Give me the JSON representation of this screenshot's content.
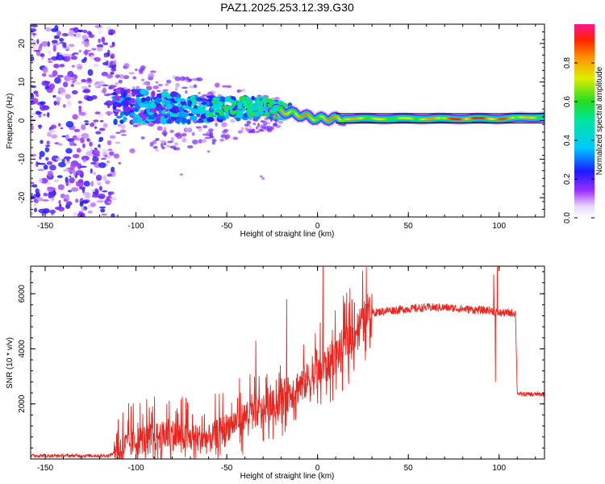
{
  "title": "PAZ1.2025.253.12.39.G30",
  "colors": {
    "snr_line": "#e8261f",
    "spectral_ridge": "#d81b60",
    "spectral_low": "#9b30ff",
    "axis": "#000000"
  },
  "chart_data": [
    {
      "type": "heatmap",
      "title": "PAZ1.2025.253.12.39.G30",
      "xlabel": "Height of straight line (km)",
      "ylabel": "Frequency (Hz)",
      "xlim": [
        -158,
        125
      ],
      "ylim": [
        -25,
        25
      ],
      "x_ticks": [
        -150,
        -100,
        -50,
        0,
        50,
        100
      ],
      "x_tick_labels": [
        "-150",
        "-100",
        "-50",
        "0",
        "50",
        "100"
      ],
      "y_ticks": [
        -20,
        -10,
        0,
        10,
        20
      ],
      "y_tick_labels": [
        "-20",
        "-10",
        "0",
        "10",
        "20"
      ],
      "colorbar": {
        "label": "Normalized spectral amplitude",
        "range": [
          0,
          1
        ],
        "ticks": [
          0.0,
          0.2,
          0.4,
          0.6,
          0.8
        ],
        "tick_labels": [
          "0.0",
          "0.2",
          "0.4",
          "0.6",
          "0.8"
        ],
        "colormap": "rainbow"
      },
      "ridge": {
        "description": "dominant frequency vs height",
        "x": [
          -110,
          -90,
          -70,
          -50,
          -30,
          -20,
          -10,
          0,
          10,
          20,
          40,
          60,
          80,
          100,
          125
        ],
        "y": [
          4,
          3.5,
          3,
          3,
          3.5,
          2.5,
          1.5,
          0.5,
          0.5,
          0.5,
          0.5,
          0.5,
          0.5,
          0.5,
          1
        ],
        "amplitude": [
          0.35,
          0.4,
          0.45,
          0.5,
          0.6,
          0.7,
          0.75,
          0.7,
          0.75,
          0.7,
          0.6,
          0.7,
          0.85,
          0.8,
          0.6
        ]
      },
      "noise_region": {
        "x_range": [
          -158,
          -112
        ],
        "y_range": [
          -25,
          25
        ],
        "amplitude": [
          0.05,
          0.25
        ]
      }
    },
    {
      "type": "line",
      "xlabel": "Height of straight line (km)",
      "ylabel": "SNR (10 * v/v)",
      "xlim": [
        -158,
        125
      ],
      "ylim": [
        0,
        7000
      ],
      "x_ticks": [
        -150,
        -100,
        -50,
        0,
        50,
        100
      ],
      "x_tick_labels": [
        "-150",
        "-100",
        "-50",
        "0",
        "50",
        "100"
      ],
      "y_ticks": [
        2000,
        4000,
        6000
      ],
      "y_tick_labels": [
        "2000",
        "4000",
        "6000"
      ],
      "series": [
        {
          "name": "SNR",
          "envelope": {
            "x": [
              -158,
              -115,
              -110,
              -100,
              -90,
              -80,
              -70,
              -60,
              -50,
              -40,
              -30,
              -20,
              -10,
              0,
              5,
              10,
              15,
              20,
              25,
              30,
              40,
              50,
              60,
              70,
              80,
              90,
              95,
              100,
              105,
              109,
              110,
              112,
              115,
              120,
              125
            ],
            "y": [
              120,
              120,
              300,
              600,
              750,
              800,
              700,
              650,
              1100,
              1500,
              1700,
              2100,
              2600,
              3000,
              3300,
              3700,
              4100,
              4500,
              5000,
              5300,
              5400,
              5450,
              5500,
              5500,
              5450,
              5400,
              5400,
              5300,
              5300,
              5300,
              2400,
              2350,
              2350,
              2350,
              2350
            ]
          },
          "noise_amplitude": [
            {
              "x_range": [
                -158,
                -112
              ],
              "amplitude": 60
            },
            {
              "x_range": [
                -112,
                -20
              ],
              "amplitude": 900
            },
            {
              "x_range": [
                -20,
                30
              ],
              "amplitude": 1100
            },
            {
              "x_range": [
                30,
                110
              ],
              "amplitude": 150
            },
            {
              "x_range": [
                110,
                125
              ],
              "amplitude": 80
            }
          ],
          "spikes": [
            {
              "x": -83,
              "y": 2000
            },
            {
              "x": -34,
              "y": 4300
            },
            {
              "x": -17,
              "y": 5800
            },
            {
              "x": 3,
              "y": 7000
            },
            {
              "x": 97,
              "y": 6700
            },
            {
              "x": 99,
              "y": 7000
            },
            {
              "x": 98,
              "y": 2800
            }
          ]
        }
      ]
    }
  ]
}
